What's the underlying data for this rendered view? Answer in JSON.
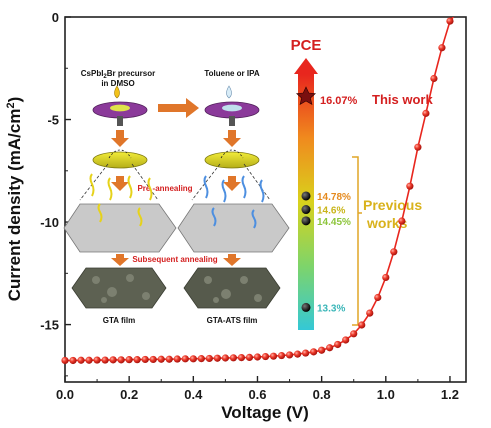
{
  "chart_data": {
    "type": "line",
    "xlabel": "Voltage (V)",
    "ylabel": "Current density (mA/cm",
    "ylabel_sup": "2",
    "ylabel_close": ")",
    "xlim": [
      0.0,
      1.25
    ],
    "ylim": [
      -17.8,
      0
    ],
    "xticks": [
      "0.0",
      "0.2",
      "0.4",
      "0.6",
      "0.8",
      "1.0",
      "1.2"
    ],
    "xtick_values": [
      0.0,
      0.2,
      0.4,
      0.6,
      0.8,
      1.0,
      1.2
    ],
    "yticks": [
      "0",
      "-5",
      "-10",
      "-15"
    ],
    "ytick_values": [
      0,
      -5,
      -10,
      -15
    ],
    "series": [
      {
        "color": "#e8261e",
        "marker": "sphere",
        "x": [
          0.0,
          0.025,
          0.05,
          0.075,
          0.1,
          0.125,
          0.15,
          0.175,
          0.2,
          0.225,
          0.25,
          0.275,
          0.3,
          0.325,
          0.35,
          0.375,
          0.4,
          0.425,
          0.45,
          0.475,
          0.5,
          0.525,
          0.55,
          0.575,
          0.6,
          0.625,
          0.65,
          0.675,
          0.7,
          0.725,
          0.75,
          0.775,
          0.8,
          0.825,
          0.85,
          0.875,
          0.9,
          0.925,
          0.95,
          0.975,
          1.0,
          1.025,
          1.05,
          1.075,
          1.1,
          1.125,
          1.15,
          1.175,
          1.2,
          1.225
        ],
        "y": [
          -16.75,
          -16.75,
          -16.74,
          -16.74,
          -16.73,
          -16.73,
          -16.72,
          -16.72,
          -16.71,
          -16.71,
          -16.7,
          -16.7,
          -16.69,
          -16.69,
          -16.68,
          -16.67,
          -16.67,
          -16.66,
          -16.65,
          -16.64,
          -16.63,
          -16.62,
          -16.61,
          -16.6,
          -16.58,
          -16.56,
          -16.54,
          -16.51,
          -16.48,
          -16.44,
          -16.39,
          -16.33,
          -16.25,
          -16.13,
          -15.97,
          -15.75,
          -15.45,
          -15.02,
          -14.44,
          -13.68,
          -12.7,
          -11.45,
          -9.95,
          -8.25,
          -6.35,
          -4.7,
          -3.0,
          -1.5,
          -0.2,
          0.6
        ]
      }
    ],
    "annotations": {
      "pce_title": "PCE",
      "this_work_value": "16.07%",
      "this_work_label": "This work",
      "previous_works_line1": "Previous",
      "previous_works_line2": "works",
      "previous_values": [
        {
          "label": "14.78%",
          "value": 14.78,
          "color": "#e58a1e"
        },
        {
          "label": "14.6%",
          "value": 14.6,
          "color": "#c9b51a"
        },
        {
          "label": "14.45%",
          "value": 14.45,
          "color": "#8cc53a"
        },
        {
          "label": "13.3%",
          "value": 13.3,
          "color": "#3ab6b8"
        }
      ],
      "this_work_numeric": 16.07,
      "pce_bar_colors": [
        "#e8261e",
        "#f08a1e",
        "#d9d21c",
        "#7ed46a",
        "#34c8d6"
      ]
    },
    "inset": {
      "precursor_label_line1": "CsPbI",
      "precursor_label_sub": "2",
      "precursor_label_line1b": "Br precursor",
      "precursor_label_line2": "in DMSO",
      "antisolvent_label": "Toluene or IPA",
      "pre_annealing_label": "Pre -annealing",
      "subsequent_annealing_label": "Subsequent annealing",
      "film_left_label": "GTA film",
      "film_right_label": "GTA-ATS film"
    }
  }
}
